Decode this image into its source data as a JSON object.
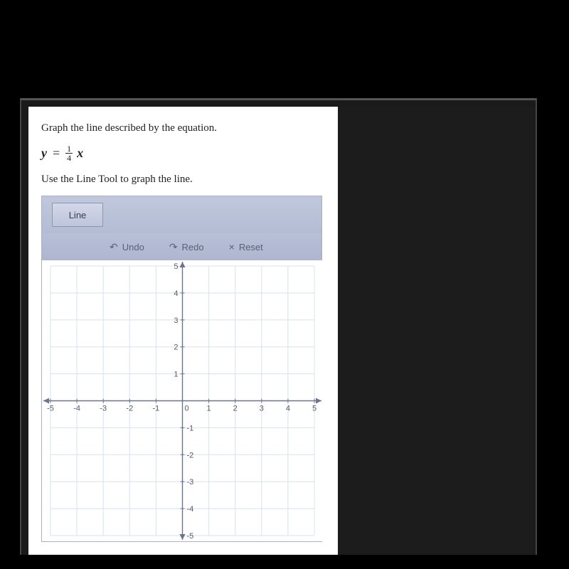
{
  "instruction": "Graph the line described by the equation.",
  "equation": {
    "lhs": "y",
    "eq": "=",
    "num": "1",
    "den": "4",
    "rhs": "x"
  },
  "sub_instruction": "Use the Line Tool to graph the line.",
  "tools": {
    "line_label": "Line",
    "undo_label": "Undo",
    "undo_glyph": "↶",
    "redo_label": "Redo",
    "redo_glyph": "↷",
    "reset_label": "Reset",
    "reset_glyph": "×"
  },
  "graph": {
    "xlim": [
      -5,
      5
    ],
    "ylim": [
      -5,
      5
    ],
    "xtick_step": 1,
    "ytick_step": 1,
    "xticks": [
      -5,
      -4,
      -3,
      -2,
      -1,
      0,
      1,
      2,
      3,
      4,
      5
    ],
    "yticks_pos": [
      1,
      2,
      3,
      4,
      5
    ],
    "yticks_neg": [
      -1,
      -2,
      -3,
      -4,
      -5
    ],
    "grid_color": "#d8e0f0",
    "axis_color": "#6a7490",
    "background_color": "#ffffff",
    "tick_label_color": "#555a6a",
    "tick_fontsize": 11,
    "font_family": "Arial, sans-serif"
  },
  "colors": {
    "page_bg": "#000000",
    "panel_bg": "#ffffff",
    "widget_bg": "#b8c0d8",
    "tool_btn_bg": "#c8cfe2",
    "tool_btn_border": "#8e96b0",
    "text": "#222222",
    "action_text": "#5a6075"
  }
}
